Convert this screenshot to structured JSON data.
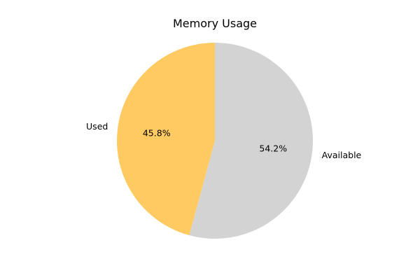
{
  "chart_data": {
    "type": "pie",
    "title": "Memory Usage",
    "slices": [
      {
        "label": "Used",
        "value": 45.8,
        "pct_label": "45.8%",
        "color": "#FFCA61"
      },
      {
        "label": "Available",
        "value": 54.2,
        "pct_label": "54.2%",
        "color": "#D3D3D3"
      }
    ],
    "start_angle_deg": 90,
    "direction": "counterclockwise",
    "legend": "none"
  }
}
